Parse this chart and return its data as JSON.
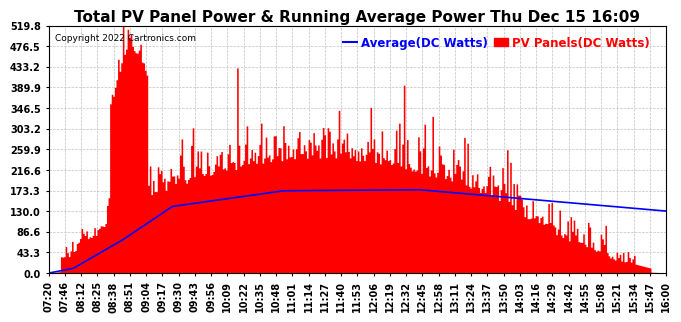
{
  "title": "Total PV Panel Power & Running Average Power Thu Dec 15 16:09",
  "copyright": "Copyright 2022 Cartronics.com",
  "legend_avg": "Average(DC Watts)",
  "legend_pv": "PV Panels(DC Watts)",
  "background_color": "#ffffff",
  "grid_color": "#bbbbbb",
  "area_color": "#ff0000",
  "line_color": "#0000ff",
  "ylim": [
    0.0,
    519.8
  ],
  "yticks": [
    0.0,
    43.3,
    86.6,
    130.0,
    173.3,
    216.6,
    259.9,
    303.2,
    346.5,
    389.9,
    433.2,
    476.5,
    519.8
  ],
  "x_labels": [
    "07:20",
    "07:46",
    "08:12",
    "08:25",
    "08:38",
    "08:51",
    "09:04",
    "09:17",
    "09:30",
    "09:43",
    "09:56",
    "10:09",
    "10:22",
    "10:35",
    "10:48",
    "11:01",
    "11:14",
    "11:27",
    "11:40",
    "11:53",
    "12:06",
    "12:19",
    "12:32",
    "12:45",
    "12:58",
    "13:11",
    "13:24",
    "13:37",
    "13:50",
    "14:03",
    "14:16",
    "14:29",
    "14:42",
    "14:55",
    "15:08",
    "15:21",
    "15:34",
    "15:47",
    "16:00"
  ],
  "title_fontsize": 11,
  "tick_fontsize": 7,
  "legend_fontsize": 8.5
}
